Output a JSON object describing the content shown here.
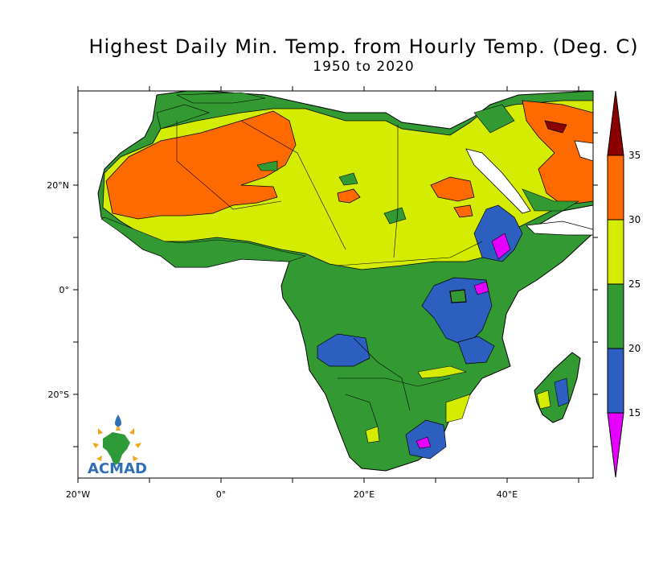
{
  "title": "Highest Daily Min. Temp. from Hourly Temp. (Deg. C)",
  "subtitle": "1950 to 2020",
  "x_ticks": [
    {
      "label": "20°W",
      "lon": -20
    },
    {
      "label": "0°",
      "lon": 0
    },
    {
      "label": "20°E",
      "lon": 20
    },
    {
      "label": "40°E",
      "lon": 40
    }
  ],
  "y_ticks": [
    {
      "label": "20°N",
      "lat": 20
    },
    {
      "label": "0°",
      "lat": 0
    },
    {
      "label": "20°S",
      "lat": -20
    }
  ],
  "colorbar": {
    "levels": [
      "35",
      "30",
      "25",
      "20",
      "15"
    ],
    "colors": {
      "above_35": "#8b0000",
      "30_35": "#ff6a00",
      "25_30": "#d4ec00",
      "20_25": "#339933",
      "15_20": "#2c5fbf",
      "below_15": "#e600ff"
    }
  },
  "logo": {
    "text": "ACMAD"
  }
}
